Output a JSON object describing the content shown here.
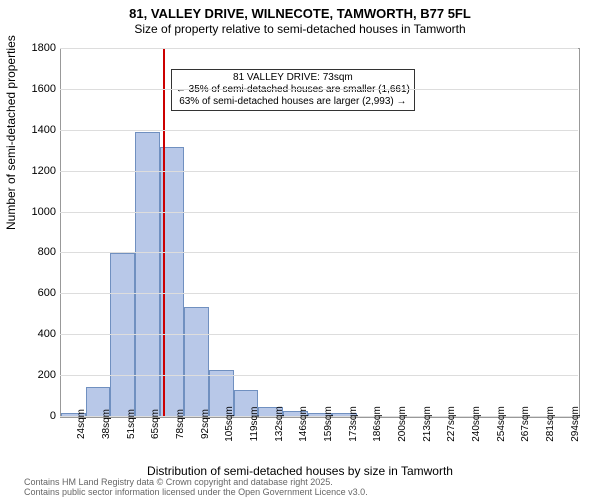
{
  "title": "81, VALLEY DRIVE, WILNECOTE, TAMWORTH, B77 5FL",
  "subtitle": "Size of property relative to semi-detached houses in Tamworth",
  "ylabel": "Number of semi-detached properties",
  "xlabel": "Distribution of semi-detached houses by size in Tamworth",
  "footer_line1": "Contains HM Land Registry data © Crown copyright and database right 2025.",
  "footer_line2": "Contains public sector information licensed under the Open Government Licence v3.0.",
  "chart": {
    "type": "histogram",
    "ylim": [
      0,
      1800
    ],
    "ytick_step": 200,
    "yticks": [
      0,
      200,
      400,
      600,
      800,
      1000,
      1200,
      1400,
      1600,
      1800
    ],
    "xtick_labels": [
      "24sqm",
      "38sqm",
      "51sqm",
      "65sqm",
      "78sqm",
      "92sqm",
      "105sqm",
      "119sqm",
      "132sqm",
      "146sqm",
      "159sqm",
      "173sqm",
      "186sqm",
      "200sqm",
      "213sqm",
      "227sqm",
      "240sqm",
      "254sqm",
      "267sqm",
      "281sqm",
      "294sqm"
    ],
    "bars": [
      {
        "x": 24,
        "y": 20
      },
      {
        "x": 38,
        "y": 145
      },
      {
        "x": 51,
        "y": 800
      },
      {
        "x": 65,
        "y": 1395
      },
      {
        "x": 78,
        "y": 1320
      },
      {
        "x": 92,
        "y": 540
      },
      {
        "x": 105,
        "y": 230
      },
      {
        "x": 119,
        "y": 130
      },
      {
        "x": 132,
        "y": 48
      },
      {
        "x": 146,
        "y": 28
      },
      {
        "x": 159,
        "y": 18
      },
      {
        "x": 173,
        "y": 18
      },
      {
        "x": 186,
        "y": 6
      },
      {
        "x": 200,
        "y": 0
      },
      {
        "x": 213,
        "y": 0
      },
      {
        "x": 227,
        "y": 0
      },
      {
        "x": 240,
        "y": 0
      },
      {
        "x": 254,
        "y": 0
      },
      {
        "x": 267,
        "y": 0
      },
      {
        "x": 281,
        "y": 0
      },
      {
        "x": 294,
        "y": 0
      }
    ],
    "bar_color": "#b8c8e8",
    "bar_border": "#7090c0",
    "bar_width_ratio": 1.0,
    "background_color": "#ffffff",
    "grid_color": "#dddddd",
    "axis_color": "#999999",
    "reference_line": {
      "x_value": 73,
      "color": "#cc0000",
      "width": 2
    },
    "annotation": {
      "line1": "81 VALLEY DRIVE: 73sqm",
      "line2": "← 35% of semi-detached houses are smaller (1,661)",
      "line3": "63% of semi-detached houses are larger (2,993) →",
      "border_color": "#333333",
      "background": "#ffffff"
    }
  }
}
